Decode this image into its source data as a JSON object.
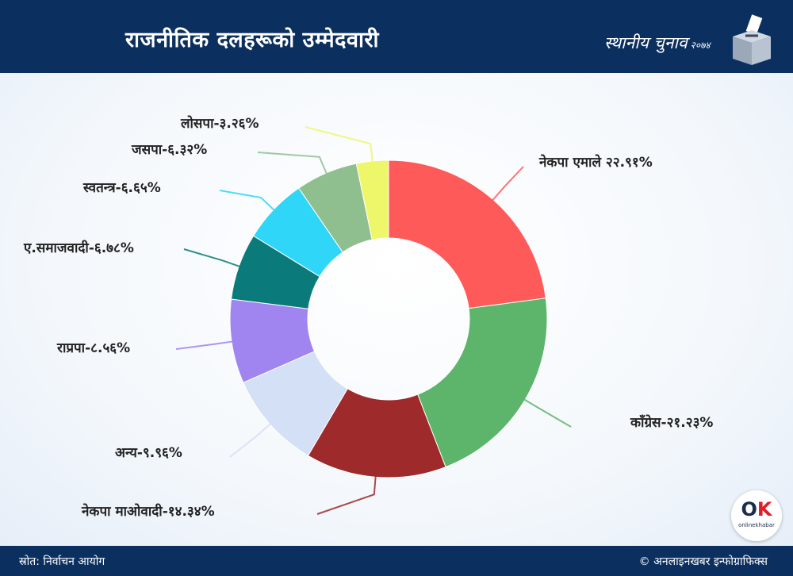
{
  "header": {
    "title": "राजनीतिक दलहरूको उम्मेदवारी",
    "badge": "स्थानीय चुनाव",
    "badge_year": "२०७४"
  },
  "chart_data": {
    "type": "pie",
    "categories": [
      "नेकपा एमाले",
      "काँग्रेस",
      "नेकपा माओवादी",
      "अन्य",
      "राप्रपा",
      "ए.समाजवादी",
      "स्वतन्त्र",
      "जसपा",
      "लोसपा"
    ],
    "values": [
      22.91,
      21.23,
      14.34,
      9.96,
      8.56,
      6.78,
      6.65,
      6.32,
      3.26
    ],
    "labels": [
      "नेकपा एमाले २२.९१%",
      "काँग्रेस-२१.२३%",
      "नेकपा माओवादी-१४.३४%",
      "अन्य-९.९६%",
      "राप्रपा-८.५६%",
      "ए.समाजवादी-६.७८%",
      "स्वतन्त्र-६.६५%",
      "जसपा-६.३२%",
      "लोसपा-३.२६%"
    ],
    "colors": [
      "#ff5a5a",
      "#5cb56b",
      "#9e2a2b",
      "#d3e0f5",
      "#a084f0",
      "#0a7a7a",
      "#2fd6f8",
      "#8fbf8f",
      "#eef76a"
    ],
    "donut": true,
    "start": "top",
    "direction": "clockwise"
  },
  "footer": {
    "source": "स्रोत: निर्वाचन आयोग",
    "credit": "© अनलाइनखबर इन्फोग्राफिक्स"
  },
  "logo": {
    "mark_o": "O",
    "mark_k": "K",
    "sub": "onlinekhabar"
  }
}
